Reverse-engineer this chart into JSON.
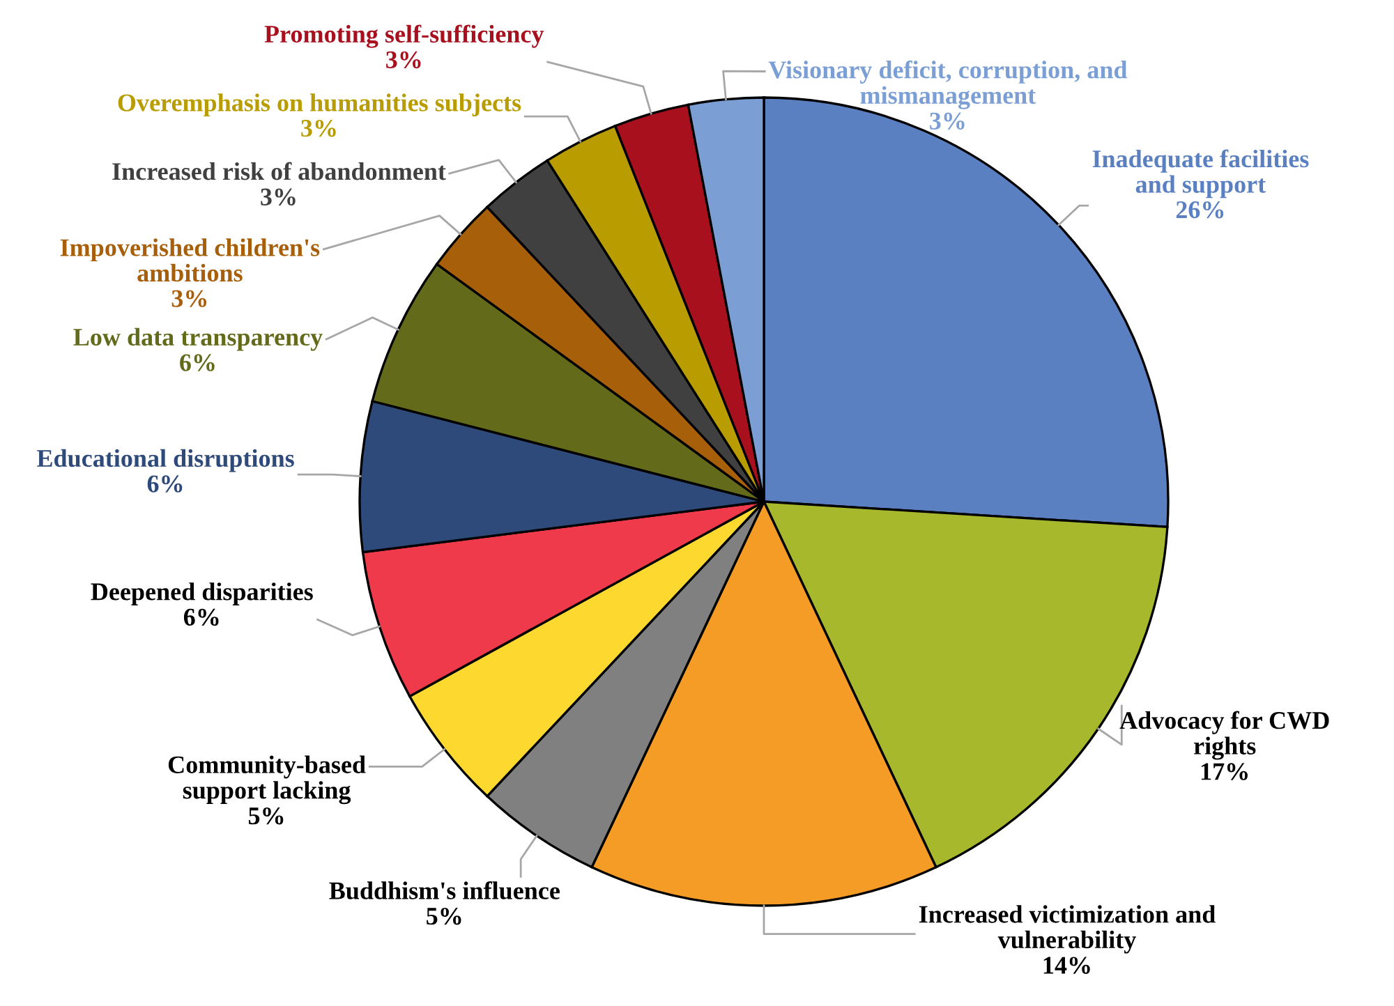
{
  "chart_data": {
    "type": "pie",
    "categories": [
      "Inadequate facilities\nand support",
      "Advocacy for CWD\nrights",
      "Increased victimization and\nvulnerability",
      "Buddhism's influence",
      "Community-based\nsupport lacking",
      "Deepened disparities",
      "Educational disruptions",
      "Low data transparency",
      "Impoverished children's\nambitions",
      "Increased risk of abandonment",
      "Overemphasis on humanities subjects",
      "Promoting self-sufficiency",
      "Visionary deficit, corruption, and\nmismanagement"
    ],
    "values": [
      26,
      17,
      14,
      5,
      5,
      6,
      6,
      6,
      3,
      3,
      3,
      3,
      3
    ],
    "value_labels": [
      "26%",
      "17%",
      "14%",
      "5%",
      "5%",
      "6%",
      "6%",
      "6%",
      "3%",
      "3%",
      "3%",
      "3%",
      "3%"
    ],
    "colors": [
      "#5a80c2",
      "#a8b82c",
      "#f59c26",
      "#808080",
      "#fdd82f",
      "#ee3a4a",
      "#2e4a7a",
      "#636b1a",
      "#a85f0a",
      "#404040",
      "#b89c00",
      "#a8101e",
      "#7b9fd4"
    ],
    "legend": false
  }
}
